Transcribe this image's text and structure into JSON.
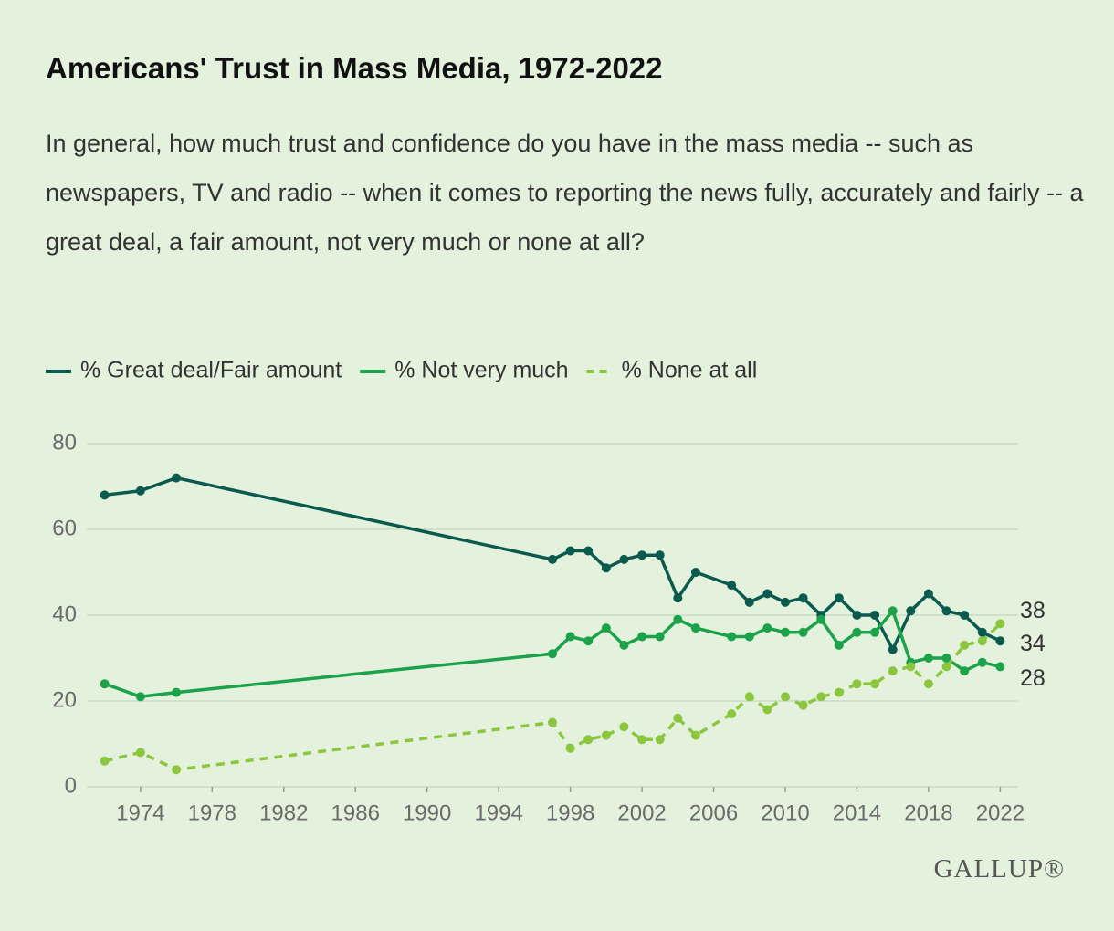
{
  "chart_data": {
    "type": "line",
    "title": "Americans' Trust in Mass Media, 1972-2022",
    "subtitle": "In general, how much trust and confidence do you have in the mass media -- such as newspapers, TV and radio -- when it comes to reporting the news fully, accurately and fairly -- a great deal, a fair amount, not very much or none at all?",
    "logo": "GALLUP®",
    "x": [
      1972,
      1974,
      1976,
      1997,
      1998,
      1999,
      2000,
      2001,
      2002,
      2003,
      2004,
      2005,
      2007,
      2008,
      2009,
      2010,
      2011,
      2012,
      2013,
      2014,
      2015,
      2016,
      2017,
      2018,
      2019,
      2020,
      2021,
      2022
    ],
    "series": [
      {
        "name": "% Great deal/Fair amount",
        "color": "#0b5a4e",
        "dashed": false,
        "values": [
          68,
          69,
          72,
          53,
          55,
          55,
          51,
          53,
          54,
          54,
          44,
          50,
          47,
          43,
          45,
          43,
          44,
          40,
          44,
          40,
          40,
          32,
          41,
          45,
          41,
          40,
          36,
          34
        ]
      },
      {
        "name": "% Not very much",
        "color": "#1ba24a",
        "dashed": false,
        "values": [
          24,
          21,
          22,
          31,
          35,
          34,
          37,
          33,
          35,
          35,
          39,
          37,
          35,
          35,
          37,
          36,
          36,
          39,
          33,
          36,
          36,
          41,
          29,
          30,
          30,
          27,
          29,
          28
        ]
      },
      {
        "name": "% None at all",
        "color": "#8cc63e",
        "dashed": true,
        "values": [
          6,
          8,
          4,
          15,
          9,
          11,
          12,
          14,
          11,
          11,
          16,
          12,
          17,
          21,
          18,
          21,
          19,
          21,
          22,
          24,
          24,
          27,
          28,
          24,
          28,
          33,
          34,
          38
        ]
      }
    ],
    "xlim": [
      1971,
      2023
    ],
    "xticks": [
      1974,
      1978,
      1982,
      1986,
      1990,
      1994,
      1998,
      2002,
      2006,
      2010,
      2014,
      2018,
      2022
    ],
    "ylim": [
      0,
      80
    ],
    "yticks": [
      0,
      20,
      40,
      60,
      80
    ],
    "grid": true,
    "end_labels": true
  }
}
